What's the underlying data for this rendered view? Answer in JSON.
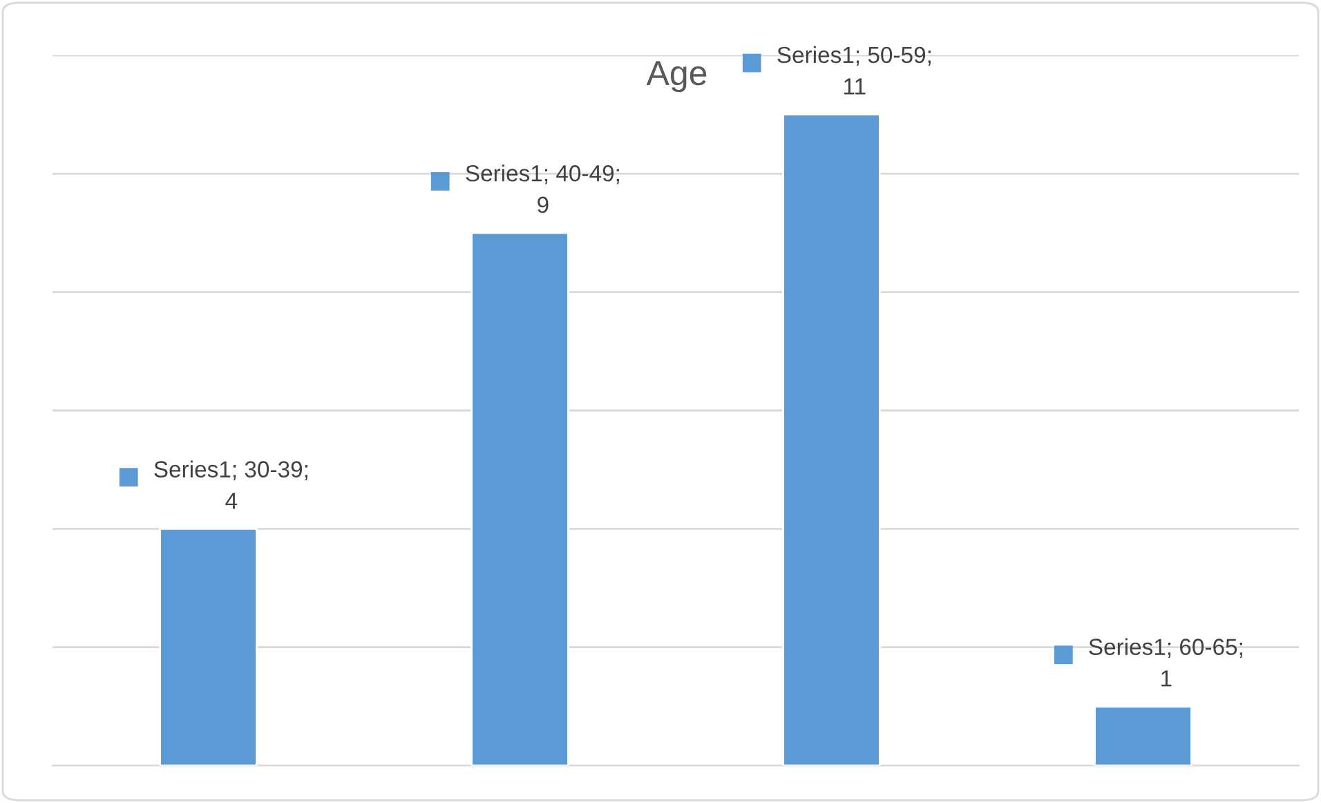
{
  "chart_data": {
    "type": "bar",
    "title": "Age",
    "categories": [
      null,
      null,
      null,
      null
    ],
    "series": [
      {
        "color": "#5b9bd5",
        "values": [
          4,
          9,
          11,
          1
        ],
        "value_labels": [
          "Series1; 30-39; 4",
          "Series1; 40-49; 9",
          "Series1; 50-59; 11",
          "Series1; 60-65; 1"
        ]
      }
    ],
    "ylim": [
      0,
      12
    ],
    "yticks": [
      {
        "value": 0,
        "label": null
      },
      {
        "value": 2,
        "label": null
      },
      {
        "value": 4,
        "label": null
      },
      {
        "value": 6,
        "label": null
      },
      {
        "value": 8,
        "label": null
      },
      {
        "value": 10,
        "label": null
      },
      {
        "value": 12,
        "label": null
      }
    ],
    "grid": "y",
    "legend": false
  }
}
